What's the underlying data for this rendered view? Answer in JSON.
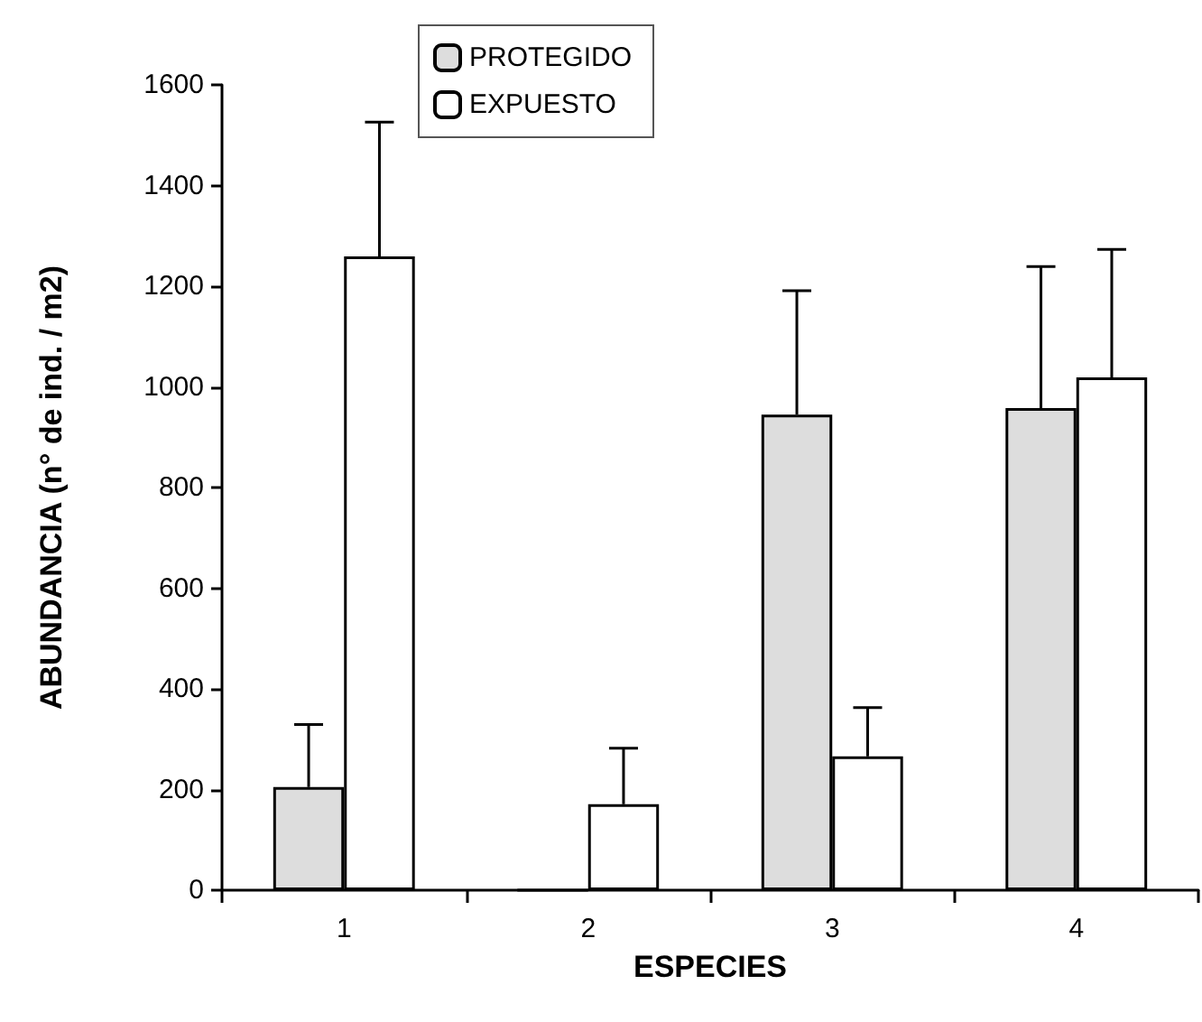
{
  "chart_data": {
    "type": "bar",
    "xlabel": "ESPECIES",
    "ylabel": "ABUNDANCIA (n° de ind. / m2)",
    "categories": [
      "1",
      "2",
      "3",
      "4"
    ],
    "series": [
      {
        "name": "PROTEGIDO",
        "color": "#dddddd",
        "values": [
          205,
          0,
          945,
          958
        ],
        "errors": [
          [
            205,
            329
          ],
          null,
          [
            945,
            1191
          ],
          [
            958,
            1239
          ]
        ]
      },
      {
        "name": "EXPUESTO",
        "color": "#ffffff",
        "values": [
          1259,
          171,
          266,
          1019
        ],
        "errors": [
          [
            1259,
            1526
          ],
          [
            171,
            282
          ],
          [
            266,
            363
          ],
          [
            1019,
            1273
          ]
        ]
      }
    ],
    "ylim": [
      0,
      1600
    ],
    "yticks": [
      0,
      200,
      400,
      600,
      800,
      1000,
      1200,
      1400,
      1600
    ],
    "grid": false,
    "legend": "top"
  }
}
